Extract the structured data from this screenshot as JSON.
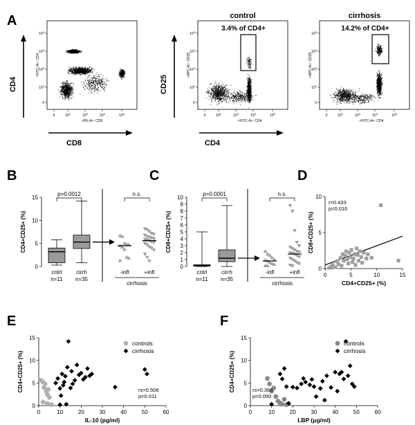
{
  "chart_data": [
    {
      "panel": "A",
      "type": "scatter",
      "plots": [
        {
          "id": "cd4-vs-cd8",
          "xlabel": "CD8",
          "ylabel": "CD4",
          "x_axis_text": "<PE-A>: CD8",
          "y_axis_text": "<FITC-A>: CD4",
          "title": ""
        },
        {
          "id": "control",
          "title": "control",
          "xlabel": "CD4",
          "ylabel": "CD25",
          "x_axis_text": "<FITC-A>: CD4",
          "y_axis_text": "<APC-A>: CD25",
          "gate_label": "3.4% of CD4+",
          "gate_percent": 3.4
        },
        {
          "id": "cirrhosis",
          "title": "cirrhosis",
          "xlabel": "",
          "ylabel": "",
          "x_axis_text": "<FITC-A>: CD4",
          "y_axis_text": "<APC-A>: CD25",
          "gate_label": "14.2% of CD4+",
          "gate_percent": 14.2
        }
      ],
      "x_ticks": [
        "0",
        "10^2",
        "10^3",
        "10^4",
        "10^5"
      ],
      "y_ticks": [
        "0",
        "10^2",
        "10^3",
        "10^4",
        "10^5"
      ]
    },
    {
      "panel": "B",
      "type": "box",
      "ylabel": "CD4+CD25+ (%)",
      "ylim": [
        0,
        15
      ],
      "yticks": [
        0,
        5,
        10,
        15
      ],
      "boxes": [
        {
          "label": "cntrl",
          "n": "n=11",
          "min": 0.3,
          "q1": 0.8,
          "median": 3.2,
          "q3": 4.0,
          "max": 5.8
        },
        {
          "label": "cirrh",
          "n": "n=35",
          "min": 0.8,
          "q1": 3.9,
          "median": 5.3,
          "q3": 6.8,
          "max": 14.2
        }
      ],
      "pvalue": "p=0.0012",
      "dots": [
        {
          "label": "-infl",
          "median": 4.5,
          "values": [
            6.7,
            6.5,
            5.0,
            4.8,
            4.7,
            4.5,
            4.2,
            3.7,
            2.0,
            1.8,
            1.3
          ]
        },
        {
          "label": "+infl",
          "median": 5.6,
          "values": [
            8.2,
            8.0,
            7.6,
            7.2,
            7.0,
            6.8,
            6.5,
            6.4,
            6.2,
            6.0,
            5.9,
            5.8,
            5.6,
            5.4,
            5.2,
            5.0,
            4.7,
            4.3,
            4.0,
            3.6,
            2.7,
            2.0,
            1.2
          ]
        }
      ],
      "dots_pvalue": "n.s.",
      "group_label": "cirrhosis"
    },
    {
      "panel": "C",
      "type": "box",
      "ylabel": "CD8+CD25+ (%)",
      "ylim": [
        0,
        10
      ],
      "yticks": [
        0,
        1,
        2,
        3,
        4,
        5,
        6,
        7,
        8,
        9,
        10
      ],
      "boxes": [
        {
          "label": "cntrl",
          "n": "n=11",
          "min": 0.0,
          "q1": 0.05,
          "median": 0.15,
          "q3": 0.25,
          "max": 5.0
        },
        {
          "label": "cirrh",
          "n": "n=35",
          "min": 0.0,
          "q1": 0.7,
          "median": 1.2,
          "q3": 2.4,
          "max": 8.8
        }
      ],
      "pvalue": "p=0.0001",
      "dots": [
        {
          "label": "-infl",
          "median": 0.8,
          "values": [
            2.2,
            1.8,
            1.6,
            1.3,
            1.0,
            0.9,
            0.8,
            0.6,
            0.4,
            0.3,
            0.1,
            0.1
          ]
        },
        {
          "label": "+infl",
          "median": 1.8,
          "values": [
            8.8,
            8.0,
            5.2,
            3.5,
            3.0,
            2.8,
            2.6,
            2.4,
            2.2,
            2.1,
            2.0,
            1.9,
            1.8,
            1.6,
            1.4,
            1.2,
            1.0,
            0.8,
            0.6,
            0.4,
            0.2,
            0.1
          ]
        }
      ],
      "dots_pvalue": "n.s.",
      "group_label": "cirrhosis"
    },
    {
      "panel": "D",
      "type": "scatter",
      "xlabel": "CD4+CD25+ (%)",
      "ylabel": "CD8+CD25+ (%)",
      "xlim": [
        0,
        15
      ],
      "ylim": [
        0,
        10
      ],
      "xticks": [
        0,
        5,
        10,
        15
      ],
      "yticks": [
        0,
        5,
        10
      ],
      "stat_r": "r=0.433",
      "stat_p": "p=0.010",
      "fit": {
        "x": [
          0,
          15
        ],
        "y": [
          0.5,
          4.5
        ]
      },
      "points": [
        [
          0.8,
          0.1
        ],
        [
          1.2,
          0.3
        ],
        [
          1.5,
          0.5
        ],
        [
          2.0,
          0.2
        ],
        [
          2.3,
          1.0
        ],
        [
          2.6,
          0.6
        ],
        [
          3.0,
          1.5
        ],
        [
          3.2,
          0.4
        ],
        [
          3.4,
          2.0
        ],
        [
          3.6,
          1.1
        ],
        [
          3.9,
          1.8
        ],
        [
          4.1,
          2.4
        ],
        [
          4.3,
          1.3
        ],
        [
          4.5,
          0.7
        ],
        [
          4.7,
          2.2
        ],
        [
          4.9,
          1.6
        ],
        [
          5.1,
          2.6
        ],
        [
          5.3,
          0.9
        ],
        [
          5.5,
          1.4
        ],
        [
          5.7,
          2.0
        ],
        [
          5.9,
          0.5
        ],
        [
          6.1,
          2.8
        ],
        [
          6.3,
          1.9
        ],
        [
          6.5,
          1.1
        ],
        [
          6.7,
          2.4
        ],
        [
          7.0,
          1.6
        ],
        [
          7.2,
          0.8
        ],
        [
          7.5,
          2.2
        ],
        [
          8.0,
          1.4
        ],
        [
          8.3,
          2.0
        ],
        [
          9.0,
          1.5
        ],
        [
          10.8,
          8.8
        ],
        [
          14.2,
          1.1
        ]
      ]
    },
    {
      "panel": "E",
      "type": "scatter",
      "xlabel": "IL-10 (pg/ml)",
      "ylabel": "CD4+CD25+ (%)",
      "xlim": [
        0,
        60
      ],
      "ylim": [
        0,
        15
      ],
      "xticks": [
        0,
        10,
        20,
        30,
        40,
        50,
        60
      ],
      "yticks": [
        0,
        5,
        10,
        15
      ],
      "stat_r": "rs=0.508",
      "stat_p": "p=0.011",
      "series": [
        {
          "name": "controls",
          "marker": "circle",
          "color": "#b0b0b0",
          "points": [
            [
              1,
              5.6
            ],
            [
              2,
              5.2
            ],
            [
              2.5,
              4.0
            ],
            [
              3,
              4.8
            ],
            [
              3.5,
              3.2
            ],
            [
              4,
              2.5
            ],
            [
              4.5,
              3.6
            ],
            [
              5,
              1.8
            ],
            [
              2,
              0.8
            ],
            [
              4,
              0.5
            ],
            [
              6,
              0.2
            ]
          ]
        },
        {
          "name": "cirrhosis",
          "marker": "diamond",
          "color": "#000000",
          "points": [
            [
              8,
              5.0
            ],
            [
              9,
              6.0
            ],
            [
              10,
              3.8
            ],
            [
              10.5,
              2.2
            ],
            [
              11,
              7.0
            ],
            [
              11.5,
              4.5
            ],
            [
              12,
              5.2
            ],
            [
              12.5,
              6.5
            ],
            [
              13,
              0.3
            ],
            [
              13.5,
              8.5
            ],
            [
              14,
              14.2
            ],
            [
              15,
              3.9
            ],
            [
              15.5,
              7.6
            ],
            [
              16,
              4.8
            ],
            [
              17,
              5.6
            ],
            [
              18,
              9.0
            ],
            [
              19,
              6.8
            ],
            [
              20,
              7.2
            ],
            [
              21,
              5.8
            ],
            [
              22,
              6.3
            ],
            [
              23,
              8.2
            ],
            [
              24,
              6.6
            ],
            [
              25,
              7.0
            ],
            [
              36,
              4.1
            ],
            [
              50,
              8.0
            ],
            [
              51,
              7.0
            ],
            [
              10,
              0.2
            ]
          ]
        }
      ]
    },
    {
      "panel": "F",
      "type": "scatter",
      "xlabel": "LBP (μg/ml)",
      "ylabel": "CD4+CD25+ (%)",
      "xlim": [
        0,
        60
      ],
      "ylim": [
        0,
        15
      ],
      "xticks": [
        0,
        10,
        20,
        30,
        40,
        50,
        60
      ],
      "yticks": [
        0,
        5,
        10,
        15
      ],
      "stat_r": "rs=0.366",
      "stat_p": "p=0.060",
      "series": [
        {
          "name": "controls",
          "marker": "circle",
          "color": "#888888",
          "points": [
            [
              8,
              6.0
            ],
            [
              9,
              4.8
            ],
            [
              10,
              3.2
            ],
            [
              11,
              3.9
            ],
            [
              12,
              2.0
            ],
            [
              13,
              1.0
            ],
            [
              14,
              0.6
            ],
            [
              15,
              0.3
            ],
            [
              16,
              1.4
            ],
            [
              17,
              0.2
            ],
            [
              18,
              0.4
            ]
          ]
        },
        {
          "name": "cirrhosis",
          "marker": "diamond",
          "color": "#000000",
          "points": [
            [
              10,
              0.3
            ],
            [
              14,
              7.0
            ],
            [
              15,
              5.9
            ],
            [
              16,
              8.2
            ],
            [
              17,
              4.2
            ],
            [
              18,
              0.5
            ],
            [
              20,
              4.1
            ],
            [
              22,
              3.9
            ],
            [
              24,
              4.8
            ],
            [
              25,
              6.0
            ],
            [
              26,
              5.2
            ],
            [
              28,
              4.6
            ],
            [
              29,
              5.8
            ],
            [
              30,
              4.2
            ],
            [
              31,
              2.0
            ],
            [
              33,
              3.8
            ],
            [
              34,
              5.4
            ],
            [
              35,
              1.2
            ],
            [
              36,
              6.6
            ],
            [
              38,
              4.0
            ],
            [
              40,
              7.4
            ],
            [
              41,
              3.2
            ],
            [
              42,
              7.0
            ],
            [
              43,
              7.4
            ],
            [
              44,
              5.9
            ],
            [
              45,
              14.2
            ],
            [
              46,
              6.6
            ],
            [
              47,
              8.8
            ],
            [
              48,
              4.8
            ],
            [
              49,
              4.2
            ]
          ]
        }
      ]
    }
  ],
  "panel_letters": [
    "A",
    "B",
    "C",
    "D",
    "E",
    "F"
  ],
  "legend": {
    "controls": "controls",
    "cirrhosis": "cirrhosis"
  }
}
